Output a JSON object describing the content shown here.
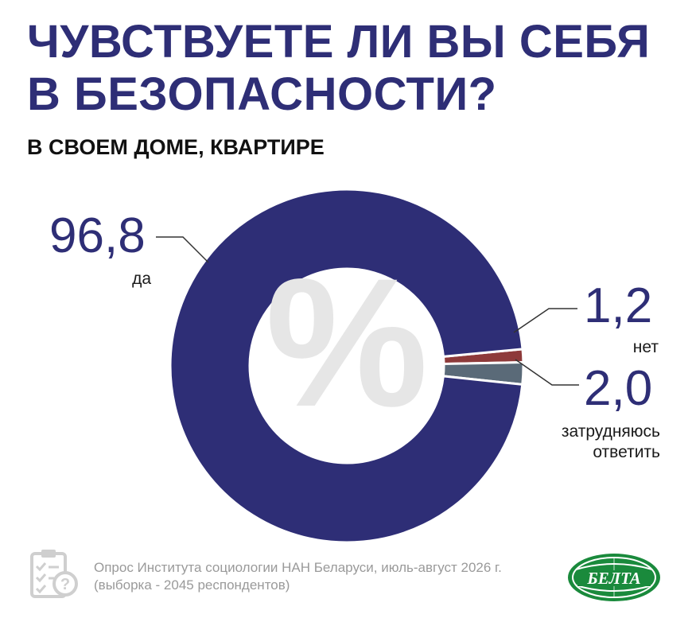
{
  "title": "ЧУВСТВУЕТЕ ЛИ ВЫ СЕБЯ В БЕЗОПАСНОСТИ?",
  "subtitle": "В СВОЕМ ДОМЕ, КВАРТИРЕ",
  "chart_data": {
    "type": "pie",
    "unit": "%",
    "center_symbol": "%",
    "slices": [
      {
        "label": "да",
        "value": 96.8,
        "value_text": "96,8",
        "color": "#2e2e76"
      },
      {
        "label": "нет",
        "value": 1.2,
        "value_text": "1,2",
        "color": "#8e3a3a"
      },
      {
        "label": "затрудняюсь ответить",
        "value": 2.0,
        "value_text": "2,0",
        "color": "#5a6a78"
      }
    ]
  },
  "source": {
    "line1": "Опрос Института социологии НАН Беларуси, июль-август 2026 г.",
    "line2": "(выборка - 2045 респондентов)"
  },
  "logo": {
    "text": "БЕЛТА",
    "color": "#1a8a3c"
  },
  "icons": {
    "source_icon": "clipboard-checklist-icon"
  }
}
